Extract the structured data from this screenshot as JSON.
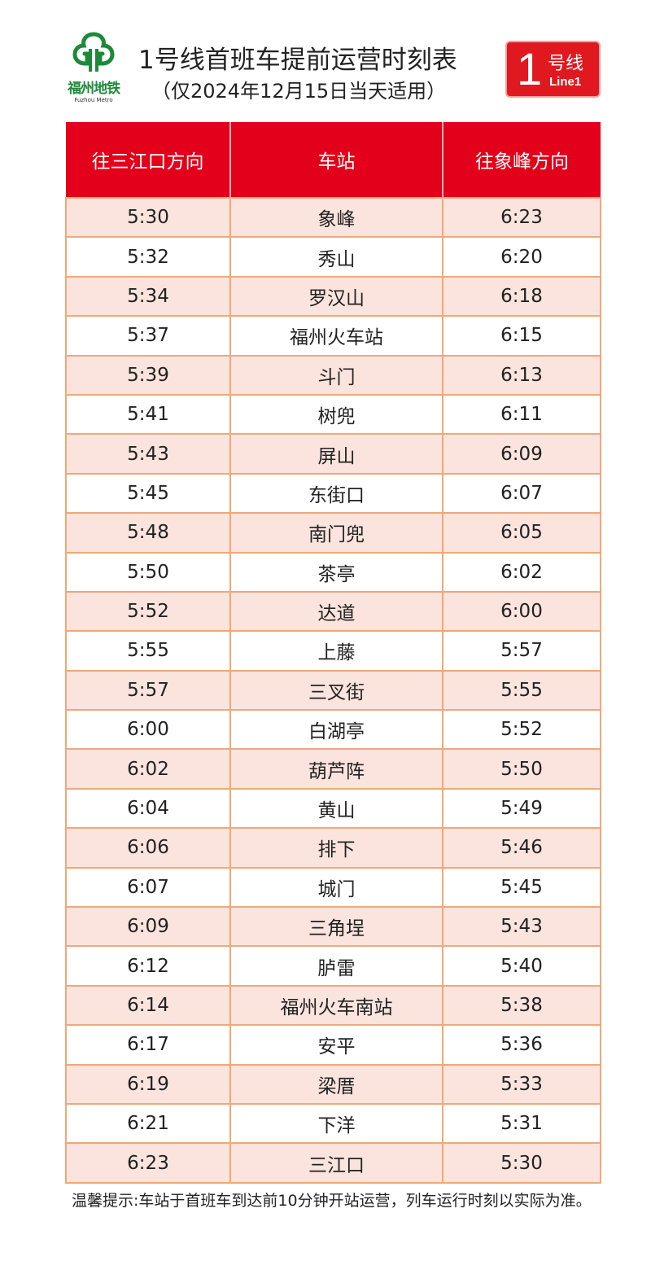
{
  "logo": {
    "cn": "福州地铁",
    "en": "Fuzhou Metro",
    "color": "#1d8a3a"
  },
  "title": "1号线首班车提前运营时刻表",
  "subtitle": "（仅2024年12月15日当天适用）",
  "badge": {
    "number": "1",
    "cn": "号线",
    "en": "Line1",
    "color": "#e0181f"
  },
  "table": {
    "headers": [
      "往三江口方向",
      "车站",
      "往象峰方向"
    ],
    "rows": [
      [
        "5:30",
        "象峰",
        "6:23"
      ],
      [
        "5:32",
        "秀山",
        "6:20"
      ],
      [
        "5:34",
        "罗汉山",
        "6:18"
      ],
      [
        "5:37",
        "福州火车站",
        "6:15"
      ],
      [
        "5:39",
        "斗门",
        "6:13"
      ],
      [
        "5:41",
        "树兜",
        "6:11"
      ],
      [
        "5:43",
        "屏山",
        "6:09"
      ],
      [
        "5:45",
        "东街口",
        "6:07"
      ],
      [
        "5:48",
        "南门兜",
        "6:05"
      ],
      [
        "5:50",
        "茶亭",
        "6:02"
      ],
      [
        "5:52",
        "达道",
        "6:00"
      ],
      [
        "5:55",
        "上藤",
        "5:57"
      ],
      [
        "5:57",
        "三叉街",
        "5:55"
      ],
      [
        "6:00",
        "白湖亭",
        "5:52"
      ],
      [
        "6:02",
        "葫芦阵",
        "5:50"
      ],
      [
        "6:04",
        "黄山",
        "5:49"
      ],
      [
        "6:06",
        "排下",
        "5:46"
      ],
      [
        "6:07",
        "城门",
        "5:45"
      ],
      [
        "6:09",
        "三角埕",
        "5:43"
      ],
      [
        "6:12",
        "胪雷",
        "5:40"
      ],
      [
        "6:14",
        "福州火车南站",
        "5:38"
      ],
      [
        "6:17",
        "安平",
        "5:36"
      ],
      [
        "6:19",
        "梁厝",
        "5:33"
      ],
      [
        "6:21",
        "下洋",
        "5:31"
      ],
      [
        "6:23",
        "三江口",
        "5:30"
      ]
    ]
  },
  "note": "温馨提示:车站于首班车到达前10分钟开站运营，列车运行时刻以实际为准。"
}
